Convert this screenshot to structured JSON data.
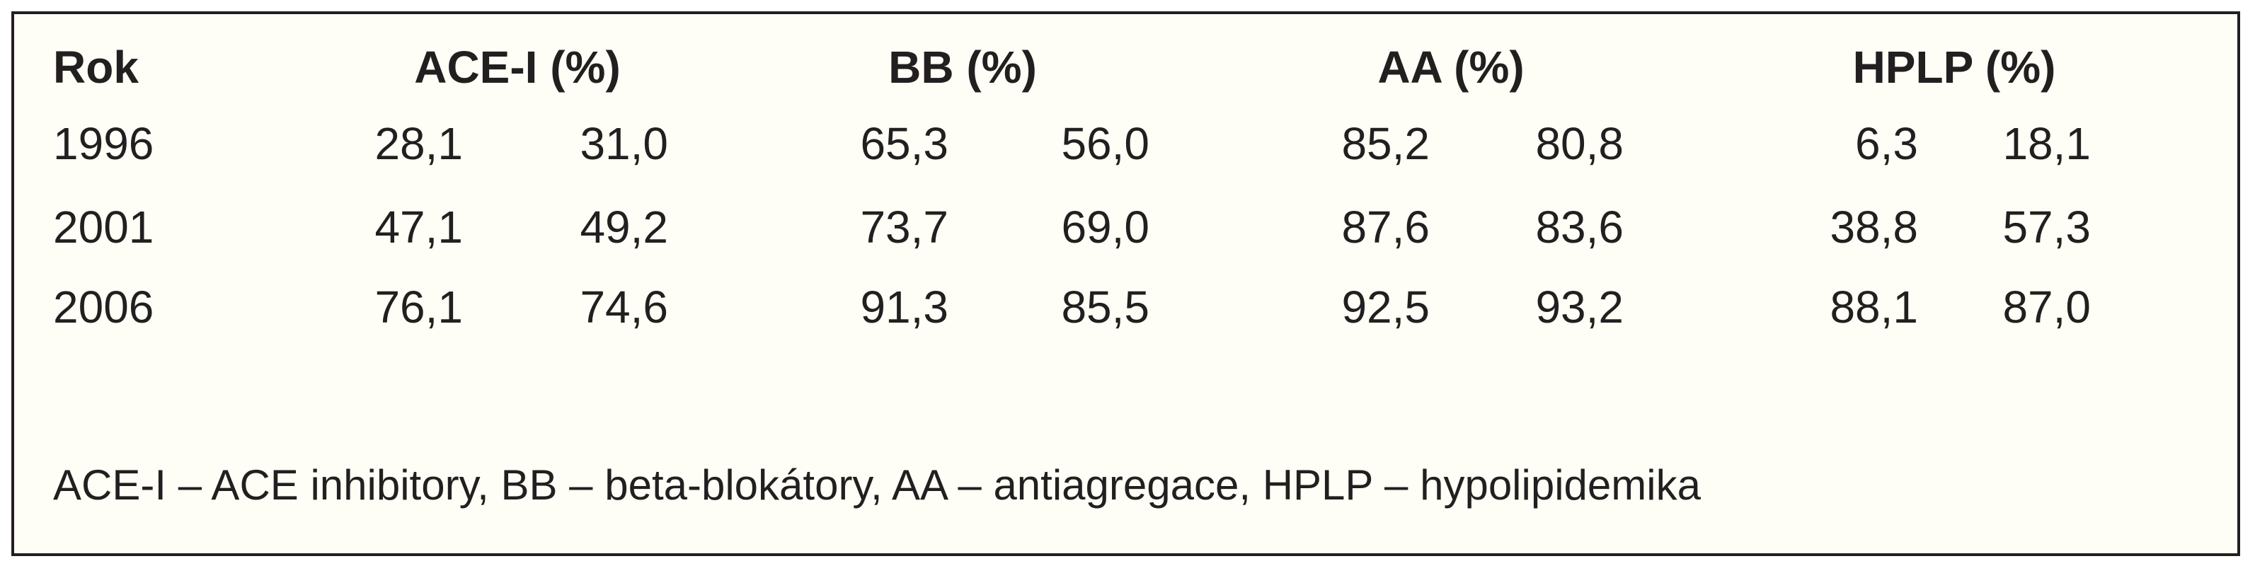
{
  "table": {
    "header": [
      "Rok",
      "ACE-I (%)",
      "BB (%)",
      "AA (%)",
      "HPLP (%)"
    ],
    "rows": [
      [
        "1996",
        "28,1",
        "31,0",
        "65,3",
        "56,0",
        "85,2",
        "80,8",
        "6,3",
        "18,1"
      ],
      [
        "2001",
        "47,1",
        "49,2",
        "73,7",
        "69,0",
        "87,6",
        "83,6",
        "38,8",
        "57,3"
      ],
      [
        "2006",
        "76,1",
        "74,6",
        "91,3",
        "85,5",
        "92,5",
        "93,2",
        "88,1",
        "87,0"
      ]
    ]
  },
  "footnote": "ACE-I – ACE inhibitory, BB – beta-blokátory, AA – antiagregace, HPLP – hypolipidemika"
}
